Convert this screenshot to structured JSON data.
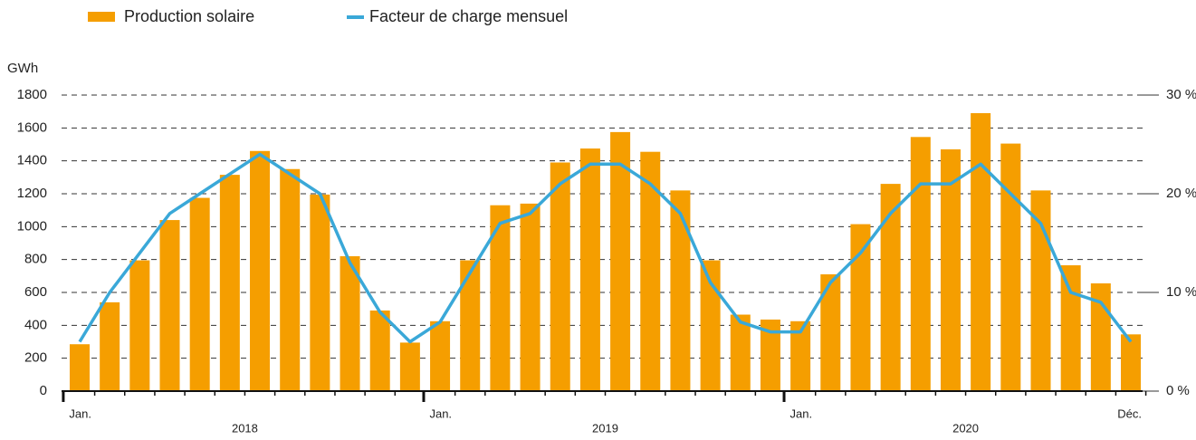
{
  "chart_data": {
    "type": "bar-line",
    "y_label": "GWh",
    "categories": [
      "Jan.",
      null,
      null,
      null,
      null,
      null,
      null,
      null,
      null,
      null,
      null,
      null,
      "Jan.",
      null,
      null,
      null,
      null,
      null,
      null,
      null,
      null,
      null,
      null,
      null,
      "Jan.",
      null,
      null,
      null,
      null,
      null,
      null,
      null,
      null,
      null,
      null,
      "Déc."
    ],
    "years": [
      "2018",
      "2019",
      "2020"
    ],
    "series": [
      {
        "name": "Production solaire",
        "color": "#f59e00",
        "type": "bar",
        "values": [
          285,
          540,
          795,
          1040,
          1175,
          1315,
          1460,
          1350,
          1195,
          820,
          490,
          295,
          425,
          795,
          1130,
          1140,
          1390,
          1475,
          1575,
          1455,
          1220,
          795,
          465,
          435,
          425,
          710,
          1015,
          1260,
          1545,
          1470,
          1690,
          1505,
          1220,
          765,
          655,
          345
        ]
      },
      {
        "name": "Facteur de charge mensuel",
        "color": "#3aa8d8",
        "type": "line",
        "axis": "y2",
        "values": [
          5,
          10,
          14,
          18,
          20,
          22,
          24,
          22,
          20,
          13,
          8,
          5,
          7,
          12,
          17,
          18,
          21,
          23,
          23,
          21,
          18,
          11,
          7,
          6,
          6,
          11,
          14,
          18,
          21,
          21,
          23,
          20,
          17,
          10,
          9,
          5
        ]
      }
    ],
    "ylim": [
      0,
      1800
    ],
    "yticks": [
      0,
      200,
      400,
      600,
      800,
      1000,
      1200,
      1400,
      1600,
      1800
    ],
    "y2lim": [
      0,
      30
    ],
    "y2ticks": [
      {
        "value": 0,
        "label": "0 %"
      },
      {
        "value": 10,
        "label": "10 %"
      },
      {
        "value": 20,
        "label": "20 %"
      },
      {
        "value": 30,
        "label": "30 %"
      }
    ],
    "grid": true,
    "legend": "top"
  }
}
